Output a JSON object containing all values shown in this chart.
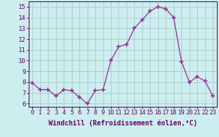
{
  "x": [
    0,
    1,
    2,
    3,
    4,
    5,
    6,
    7,
    8,
    9,
    10,
    11,
    12,
    13,
    14,
    15,
    16,
    17,
    18,
    19,
    20,
    21,
    22,
    23
  ],
  "y": [
    7.9,
    7.3,
    7.3,
    6.7,
    7.3,
    7.2,
    6.6,
    6.0,
    7.2,
    7.3,
    10.0,
    11.3,
    11.5,
    13.0,
    13.8,
    14.6,
    15.0,
    14.8,
    14.0,
    9.9,
    8.0,
    8.5,
    8.1,
    6.7
  ],
  "line_color": "#993399",
  "marker": "+",
  "marker_size": 4,
  "marker_lw": 1.2,
  "bg_color": "#cceeee",
  "grid_color": "#aacccc",
  "xlabel": "Windchill (Refroidissement éolien,°C)",
  "ylabel_ticks": [
    6,
    7,
    8,
    9,
    10,
    11,
    12,
    13,
    14,
    15
  ],
  "xlim": [
    -0.5,
    23.5
  ],
  "ylim": [
    5.7,
    15.5
  ],
  "xticks": [
    0,
    1,
    2,
    3,
    4,
    5,
    6,
    7,
    8,
    9,
    10,
    11,
    12,
    13,
    14,
    15,
    16,
    17,
    18,
    19,
    20,
    21,
    22,
    23
  ],
  "tick_fontsize": 6.5,
  "xlabel_fontsize": 7,
  "label_color": "#660066",
  "tick_color": "#660066",
  "spine_color": "#660066",
  "line_width": 1.0
}
